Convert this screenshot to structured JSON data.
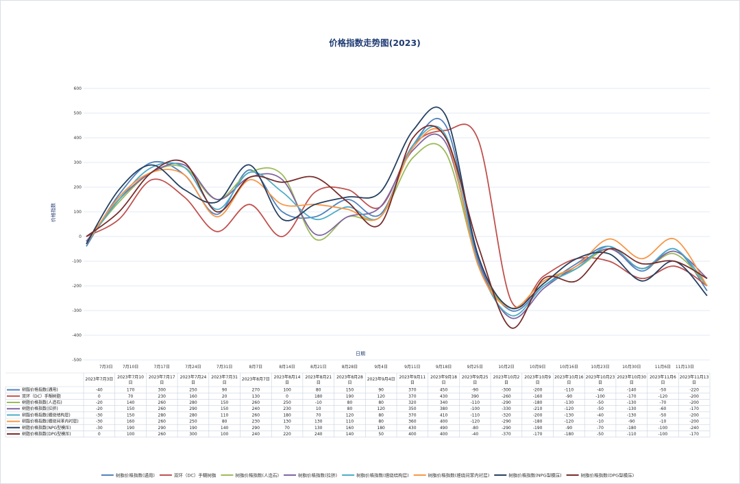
{
  "chart_data": {
    "type": "line",
    "title": "价格指数走势图(2023)",
    "xlabel": "日期",
    "ylabel": "价格指数",
    "ylim": [
      -500,
      600
    ],
    "yticks": [
      600,
      500,
      400,
      300,
      200,
      100,
      0,
      -100,
      -200,
      -300,
      -400,
      -500
    ],
    "x_axis_ticks": [
      "7月3日",
      "7月10日",
      "7月17日",
      "7月24日",
      "7月31日",
      "8月7日",
      "8月14日",
      "8月21日",
      "8月28日",
      "9月4日",
      "9月11日",
      "9月18日",
      "9月25日",
      "10月2日",
      "10月9日",
      "10月16日",
      "10月23日",
      "10月30日",
      "11月6日",
      "11月13日"
    ],
    "categories": [
      "2023年7月3日",
      "2023年7月10日",
      "2023年7月17日",
      "2023年7月24日",
      "2023年7月31日",
      "2023年8月7日",
      "2023年8月14日",
      "2023年8月21日",
      "2023年8月28日",
      "2023年9月4日",
      "2023年9月11日",
      "2023年9月18日",
      "2023年9月25日",
      "2023年10月2日",
      "2023年10月9日",
      "2023年10月16日",
      "2023年10月23日",
      "2023年10月30日",
      "2023年11月6日",
      "2023年11月13日"
    ],
    "grid": true,
    "legend_position": "bottom",
    "series": [
      {
        "name": "树脂价格指数(通用)",
        "color": "#4f81bd",
        "values": [
          -40,
          170,
          300,
          250,
          90,
          270,
          100,
          80,
          150,
          90,
          370,
          450,
          -90,
          -300,
          -200,
          -110,
          -40,
          -140,
          -50,
          -220
        ]
      },
      {
        "name": "双环（DC）手糊树脂",
        "color": "#c0504d",
        "values": [
          0,
          70,
          230,
          160,
          20,
          130,
          0,
          180,
          190,
          120,
          370,
          430,
          390,
          -260,
          -160,
          -90,
          -100,
          -170,
          -120,
          -200
        ]
      },
      {
        "name": "树脂价格指数(人造石)",
        "color": "#9bbb59",
        "values": [
          -20,
          140,
          260,
          280,
          150,
          260,
          250,
          -10,
          80,
          80,
          320,
          340,
          -110,
          -290,
          -180,
          -130,
          -50,
          -130,
          -70,
          -200
        ]
      },
      {
        "name": "树脂价格指数(拉挤)",
        "color": "#8064a2",
        "values": [
          -20,
          150,
          260,
          290,
          150,
          240,
          230,
          10,
          80,
          120,
          350,
          380,
          -100,
          -330,
          -210,
          -120,
          -50,
          -130,
          -60,
          -170
        ]
      },
      {
        "name": "树脂价格指数(缠绕结构层)",
        "color": "#4bacc6",
        "values": [
          -30,
          150,
          280,
          280,
          110,
          260,
          180,
          70,
          120,
          80,
          370,
          410,
          -110,
          -320,
          -200,
          -130,
          -40,
          -130,
          -50,
          -200
        ]
      },
      {
        "name": "树脂价格指数(缠绕间苯内衬层)",
        "color": "#f79646",
        "values": [
          -30,
          160,
          260,
          250,
          80,
          230,
          130,
          130,
          110,
          80,
          360,
          400,
          -120,
          -290,
          -180,
          -120,
          -10,
          -90,
          -10,
          -200
        ]
      },
      {
        "name": "树脂价格指数(NPG型模压)",
        "color": "#243f60",
        "values": [
          -30,
          190,
          290,
          190,
          140,
          290,
          70,
          130,
          160,
          180,
          430,
          490,
          -80,
          -290,
          -190,
          -90,
          -70,
          -180,
          -100,
          -240
        ]
      },
      {
        "name": "树脂价格指数(DPG型模压)",
        "color": "#772c2a",
        "values": [
          0,
          100,
          260,
          300,
          100,
          240,
          220,
          240,
          140,
          50,
          400,
          400,
          -40,
          -370,
          -170,
          -180,
          -50,
          -110,
          -100,
          -170
        ]
      }
    ]
  }
}
